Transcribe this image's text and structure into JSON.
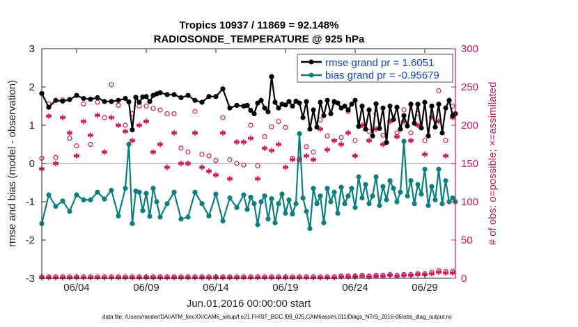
{
  "chart_data": {
    "type": "line",
    "title_line1": "Tropics 10937 / 11869 = 92.148%",
    "title_line2": "RADIOSONDE_TEMPERATURE @ 925 hPa",
    "xlabel": "Jun.01,2016 00:00:00 start",
    "ylabel_left": "rmse and bias (model - observation)",
    "ylabel_right": "# of obs: o=possible; ×=assimilated",
    "ylim_left": [
      -3,
      3
    ],
    "ylim_right": [
      0,
      300
    ],
    "xlim": [
      1.5,
      31.2
    ],
    "x_ticks": [
      {
        "value": 4,
        "label": "06/04"
      },
      {
        "value": 9,
        "label": "06/09"
      },
      {
        "value": 14,
        "label": "06/14"
      },
      {
        "value": 19,
        "label": "06/19"
      },
      {
        "value": 24,
        "label": "06/24"
      },
      {
        "value": 29,
        "label": "06/29"
      }
    ],
    "y_ticks_left": [
      "-3",
      "-2",
      "-1",
      "0",
      "1",
      "2",
      "3"
    ],
    "y_ticks_right": [
      "0",
      "50",
      "100",
      "150",
      "200",
      "250",
      "300"
    ],
    "legend": {
      "rmse_label": "rmse grand pr = 1.6051",
      "bias_label": "bias grand pr = -0.95679"
    },
    "colors": {
      "rmse": "#000000",
      "bias": "#0a7f7f",
      "counts": "#d4145a",
      "zero_line": "#b3b3b3"
    },
    "footer": "data file: /Users/raeder/DAI/ATM_forcXX/CAM6_setup/f.e21.FHIST_BGC.f09_025.CAM6assim.011/Diags_NTrS_2016-06/obs_diag_output.nc",
    "series": [
      {
        "name": "rmse",
        "segments": [
          {
            "x": [
              1.5,
              2.0,
              2.5,
              3.0,
              3.5,
              4.0,
              4.5,
              5.0,
              5.5,
              6.0,
              6.5,
              7.0,
              7.5,
              7.75,
              8.0,
              8.25,
              8.5,
              8.75,
              9.0,
              9.25,
              9.5,
              9.75,
              10.0,
              10.5,
              11.0,
              11.5,
              12.0,
              12.5,
              13.0,
              13.5,
              14.0,
              14.5,
              15.0,
              15.5,
              16.0,
              16.25,
              16.5,
              16.75,
              17.0,
              17.25,
              17.5,
              17.75,
              18.0,
              18.25,
              18.5,
              18.75,
              19.0,
              19.25,
              19.5,
              19.75,
              20.0,
              20.25,
              20.5,
              20.75,
              21.0,
              21.25,
              21.5,
              21.75,
              22.0,
              22.25,
              22.5,
              22.75,
              23.0,
              23.25,
              23.5,
              23.75,
              24.0,
              24.25,
              24.5,
              24.75,
              25.0,
              25.25,
              25.5,
              25.75,
              26.0,
              26.25,
              26.5,
              26.75,
              27.0,
              27.25,
              27.5,
              27.75,
              28.0,
              28.25,
              28.5,
              28.75,
              29.0,
              29.25,
              29.5,
              29.75,
              30.0,
              30.25,
              30.5,
              30.75,
              31.0,
              31.2
            ],
            "y": [
              1.83,
              1.47,
              1.65,
              1.63,
              1.67,
              1.78,
              1.7,
              1.68,
              1.72,
              1.62,
              1.62,
              1.65,
              1.7,
              1.61,
              0.88,
              1.73,
              1.6,
              1.74,
              1.75,
              1.62,
              1.78,
              1.82,
              1.85,
              1.8,
              1.8,
              1.72,
              1.78,
              1.65,
              1.6,
              1.75,
              1.75,
              1.95,
              1.45,
              1.52,
              1.5,
              1.52,
              1.39,
              1.3,
              1.58,
              1.65,
              1.45,
              1.35,
              2.27,
              1.6,
              1.45,
              1.55,
              1.53,
              1.62,
              1.5,
              1.63,
              1.58,
              1.2,
              1.62,
              0.9,
              1.4,
              0.95,
              1.6,
              1.25,
              1.65,
              1.3,
              1.62,
              1.58,
              1.45,
              1.5,
              1.4,
              1.55,
              1.65,
              0.97,
              1.5,
              0.9,
              1.4,
              0.72,
              1.56,
              0.92,
              1.45,
              0.55,
              1.5,
              1.15,
              1.47,
              0.9,
              1.25,
              0.98,
              1.55,
              1.05,
              1.55,
              0.93,
              1.6,
              0.72,
              1.5,
              0.95,
              1.55,
              0.8,
              1.45,
              1.65,
              1.25,
              1.3
            ]
          }
        ]
      },
      {
        "name": "bias",
        "segments": [
          {
            "x": [
              1.5,
              2.0,
              2.5,
              3.0,
              3.5,
              4.0,
              4.5,
              5.0,
              5.5,
              6.0,
              6.5,
              7.0,
              7.5,
              7.75,
              8.0,
              8.25,
              8.5,
              8.75,
              9.0,
              9.25,
              9.5,
              9.75,
              10.0,
              10.5,
              11.0,
              11.5,
              12.0,
              12.5,
              13.0,
              13.5,
              14.0,
              14.5,
              15.0,
              15.5,
              16.0,
              16.25,
              16.5,
              16.75,
              17.0,
              17.25,
              17.5,
              17.75,
              18.0,
              18.25,
              18.5,
              18.75,
              19.0,
              19.25,
              19.5,
              19.75,
              20.0,
              20.25,
              20.5,
              20.75,
              21.0,
              21.25,
              21.5,
              21.75,
              22.0,
              22.25,
              22.5,
              22.75,
              23.0,
              23.25,
              23.5,
              23.75,
              24.0,
              24.25,
              24.5,
              24.75,
              25.0,
              25.25,
              25.5,
              25.75,
              26.0,
              26.25,
              26.5,
              26.75,
              27.0,
              27.25,
              27.5,
              27.75,
              28.0,
              28.25,
              28.5,
              28.75,
              29.0,
              29.25,
              29.5,
              29.75,
              30.0,
              30.25,
              30.5,
              30.75,
              31.0,
              31.2
            ],
            "y": [
              -1.57,
              -0.82,
              -1.12,
              -0.98,
              -1.25,
              -0.82,
              -0.95,
              -0.95,
              -0.75,
              -0.93,
              -0.7,
              -1.37,
              -0.65,
              0.5,
              -1.57,
              -0.72,
              -0.75,
              -1.23,
              -0.78,
              -1.38,
              -0.65,
              -1.0,
              -1.4,
              -1.05,
              -0.75,
              -1.45,
              -1.4,
              -0.75,
              -1.05,
              -1.37,
              -0.8,
              -1.5,
              -0.9,
              -1.15,
              -0.82,
              -1.2,
              -0.88,
              -1.05,
              -1.6,
              -1.0,
              -0.85,
              -1.45,
              -0.92,
              -1.55,
              -1.05,
              -0.8,
              -1.3,
              -0.95,
              -1.32,
              -1.05,
              0.78,
              -0.9,
              -1.25,
              -1.7,
              -0.65,
              -1.05,
              -0.85,
              -1.55,
              -0.65,
              -1.0,
              -0.75,
              -1.3,
              -0.62,
              -1.05,
              -0.85,
              -0.65,
              -1.15,
              -0.35,
              -0.9,
              -0.55,
              -1.05,
              -0.85,
              -0.35,
              -1.1,
              -0.6,
              -0.95,
              -0.45,
              -0.65,
              -1.0,
              -0.75,
              0.58,
              -0.85,
              -0.45,
              -1.05,
              -0.55,
              -0.8,
              -0.15,
              -1.1,
              -0.6,
              -0.95,
              -0.15,
              -1.05,
              -0.45,
              -1.0,
              -0.9,
              -1.0
            ]
          }
        ]
      },
      {
        "name": "obs_possible",
        "x": [
          1.5,
          2.0,
          2.5,
          3.0,
          3.5,
          4.0,
          4.5,
          5.0,
          5.5,
          6.0,
          6.5,
          7.0,
          7.5,
          8.0,
          8.5,
          9.0,
          9.5,
          10.0,
          10.5,
          11.0,
          11.5,
          12.0,
          12.5,
          13.0,
          13.5,
          14.0,
          14.5,
          15.0,
          15.5,
          16.0,
          16.5,
          17.0,
          17.5,
          18.0,
          18.5,
          19.0,
          19.5,
          20.0,
          20.5,
          21.0,
          21.5,
          22.0,
          22.5,
          23.0,
          23.5,
          24.0,
          24.5,
          25.0,
          25.5,
          26.0,
          26.5,
          27.0,
          27.5,
          28.0,
          28.5,
          29.0,
          29.5,
          30.0,
          30.5,
          31.0
        ],
        "y": [
          157,
          228,
          158,
          233,
          183,
          173,
          228,
          175,
          230,
          210,
          253,
          226,
          200,
          215,
          225,
          225,
          222,
          220,
          215,
          215,
          170,
          165,
          218,
          162,
          160,
          154,
          210,
          155,
          150,
          148,
          200,
          147,
          185,
          198,
          205,
          197,
          157,
          156,
          172,
          165,
          207,
          186,
          230,
          184,
          218,
          180,
          225,
          192,
          215,
          187,
          225,
          190,
          220,
          190,
          215,
          180,
          225,
          245,
          180,
          225
        ]
      },
      {
        "name": "obs_assimilated",
        "x": [
          1.5,
          2.0,
          2.5,
          3.0,
          3.5,
          4.0,
          4.5,
          5.0,
          5.5,
          6.0,
          6.5,
          7.0,
          7.5,
          8.0,
          8.5,
          9.0,
          9.5,
          10.0,
          10.5,
          11.0,
          11.5,
          12.0,
          12.5,
          13.0,
          13.5,
          14.0,
          14.5,
          15.0,
          15.5,
          16.0,
          16.5,
          17.0,
          17.5,
          18.0,
          18.5,
          19.0,
          19.5,
          20.0,
          20.5,
          21.0,
          21.5,
          22.0,
          22.5,
          23.0,
          23.5,
          24.0,
          24.5,
          25.0,
          25.5,
          26.0,
          26.5,
          27.0,
          27.5,
          28.0,
          28.5,
          29.0,
          29.5,
          30.0,
          30.5,
          31.0
        ],
        "y": [
          143,
          212,
          150,
          210,
          190,
          160,
          205,
          187,
          213,
          165,
          210,
          200,
          192,
          180,
          200,
          205,
          165,
          175,
          145,
          190,
          150,
          150,
          190,
          145,
          140,
          135,
          190,
          130,
          178,
          178,
          183,
          130,
          170,
          167,
          175,
          145,
          155,
          155,
          160,
          155,
          195,
          168,
          180,
          175,
          190,
          160,
          200,
          180,
          195,
          175,
          205,
          185,
          205,
          180,
          200,
          162,
          210,
          205,
          160,
          210
        ]
      },
      {
        "name": "obs_possible_near_zero",
        "x": [
          1.5,
          2.0,
          2.5,
          3.0,
          3.5,
          4.0,
          4.5,
          5.0,
          5.5,
          6.0,
          6.5,
          7.0,
          7.5,
          8.0,
          8.5,
          9.0,
          9.5,
          10.0,
          10.5,
          11.0,
          11.5,
          12.0,
          12.5,
          13.0,
          13.5,
          14.0,
          14.5,
          15.0,
          15.5,
          16.0,
          16.5,
          17.0,
          17.5,
          18.0,
          18.5,
          19.0,
          19.5,
          20.0,
          20.5,
          21.0,
          21.5,
          22.0,
          22.5,
          23.0,
          23.5,
          24.0,
          24.5,
          25.0,
          25.5,
          26.0,
          26.5,
          27.0,
          27.5,
          28.0,
          28.5,
          29.0,
          29.5,
          30.0,
          30.5,
          31.0
        ],
        "y": [
          2,
          2,
          2,
          2,
          2,
          2,
          2,
          2,
          2,
          2,
          2,
          2,
          2,
          2,
          2,
          2,
          2,
          2,
          2,
          2,
          2,
          2,
          2,
          2,
          2,
          2,
          2,
          2,
          2,
          2,
          2,
          2,
          2,
          2,
          2,
          2,
          2,
          2,
          2,
          2,
          2,
          2,
          2,
          3,
          3,
          3,
          4,
          3,
          4,
          4,
          5,
          4,
          5,
          5,
          6,
          6,
          8,
          10,
          9,
          9
        ]
      },
      {
        "name": "obs_assimilated_near_zero",
        "x": [
          1.5,
          2.0,
          2.5,
          3.0,
          3.5,
          4.0,
          4.5,
          5.0,
          5.5,
          6.0,
          6.5,
          7.0,
          7.5,
          8.0,
          8.5,
          9.0,
          9.5,
          10.0,
          10.5,
          11.0,
          11.5,
          12.0,
          12.5,
          13.0,
          13.5,
          14.0,
          14.5,
          15.0,
          15.5,
          16.0,
          16.5,
          17.0,
          17.5,
          18.0,
          18.5,
          19.0,
          19.5,
          20.0,
          20.5,
          21.0,
          21.5,
          22.0,
          22.5,
          23.0,
          23.5,
          24.0,
          24.5,
          25.0,
          25.5,
          26.0,
          26.5,
          27.0,
          27.5,
          28.0,
          28.5,
          29.0,
          29.5,
          30.0,
          30.5,
          31.0
        ],
        "y": [
          1,
          1,
          1,
          1,
          1,
          1,
          1,
          1,
          1,
          1,
          1,
          1,
          1,
          1,
          1,
          1,
          1,
          1,
          1,
          1,
          1,
          1,
          1,
          1,
          1,
          1,
          1,
          1,
          1,
          1,
          1,
          1,
          1,
          1,
          1,
          1,
          1,
          1,
          1,
          1,
          1,
          1,
          1,
          2,
          2,
          2,
          3,
          2,
          3,
          3,
          4,
          3,
          4,
          4,
          5,
          5,
          6,
          8,
          7,
          7
        ]
      }
    ]
  }
}
